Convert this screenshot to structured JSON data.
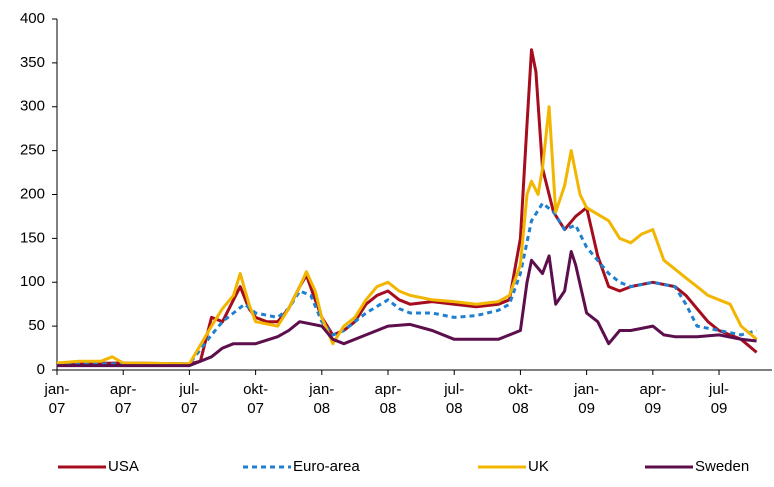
{
  "chart_data": {
    "type": "line",
    "xlim": [
      0,
      32.4
    ],
    "ylim": [
      0,
      400
    ],
    "yticks": [
      0,
      50,
      100,
      150,
      200,
      250,
      300,
      350,
      400
    ],
    "xticks": [
      {
        "value": 0,
        "label": "jan-07"
      },
      {
        "value": 3,
        "label": "apr-07"
      },
      {
        "value": 6,
        "label": "jul-07"
      },
      {
        "value": 9,
        "label": "okt-07"
      },
      {
        "value": 12,
        "label": "jan-08"
      },
      {
        "value": 15,
        "label": "apr-08"
      },
      {
        "value": 18,
        "label": "jul-08"
      },
      {
        "value": 21,
        "label": "okt-08"
      },
      {
        "value": 24,
        "label": "jan-09"
      },
      {
        "value": 27,
        "label": "apr-09"
      },
      {
        "value": 30,
        "label": "jul-09"
      }
    ],
    "series": [
      {
        "name": "USA",
        "color": "#a50d1e",
        "dashed": false,
        "x": [
          0,
          3,
          6,
          6.5,
          7,
          7.5,
          8,
          8.3,
          8.7,
          9,
          9.5,
          10,
          10.5,
          11,
          11.3,
          11.7,
          12,
          12.5,
          13,
          13.5,
          14,
          14.5,
          15,
          15.5,
          16,
          17,
          18,
          19,
          20,
          20.5,
          21,
          21.3,
          21.5,
          21.7,
          22,
          22.5,
          23,
          23.5,
          24,
          24.5,
          25,
          25.5,
          26,
          27,
          28,
          28.5,
          29,
          29.5,
          30,
          31,
          31.7
        ],
        "values": [
          7,
          8,
          7,
          10,
          60,
          55,
          80,
          95,
          70,
          60,
          55,
          55,
          70,
          95,
          108,
          80,
          60,
          40,
          45,
          55,
          75,
          85,
          90,
          80,
          75,
          78,
          75,
          72,
          75,
          80,
          150,
          280,
          365,
          340,
          230,
          180,
          160,
          175,
          185,
          130,
          95,
          90,
          95,
          100,
          95,
          85,
          70,
          55,
          45,
          35,
          20
        ]
      },
      {
        "name": "Euro-area",
        "color": "#1f7fd0",
        "dashed": true,
        "x": [
          0,
          6,
          7,
          7.5,
          8,
          8.5,
          9,
          10,
          10.5,
          11,
          11.5,
          12,
          12.5,
          13,
          14,
          15,
          15.5,
          16,
          17,
          18,
          19,
          20,
          20.5,
          21,
          21.5,
          22,
          22.5,
          23,
          23.5,
          24,
          25,
          25.5,
          26,
          27,
          28,
          28.5,
          29,
          30,
          31,
          31.7
        ],
        "values": [
          7,
          7,
          40,
          55,
          65,
          75,
          65,
          60,
          70,
          90,
          85,
          55,
          40,
          45,
          65,
          80,
          70,
          65,
          65,
          60,
          62,
          68,
          75,
          110,
          170,
          190,
          180,
          160,
          165,
          140,
          110,
          100,
          95,
          100,
          95,
          75,
          50,
          45,
          40,
          45
        ]
      },
      {
        "name": "UK",
        "color": "#f2b600",
        "dashed": false,
        "x": [
          0,
          1,
          2,
          2.5,
          3,
          6,
          7,
          7.5,
          8,
          8.3,
          8.7,
          9,
          10,
          10.5,
          11,
          11.3,
          11.7,
          12,
          12.5,
          13,
          13.5,
          14,
          14.5,
          15,
          15.5,
          16,
          17,
          18,
          19,
          20,
          20.5,
          21,
          21.3,
          21.5,
          21.8,
          22,
          22.3,
          22.6,
          23,
          23.3,
          23.7,
          24,
          25,
          25.5,
          26,
          26.5,
          27,
          27.5,
          28,
          28.5,
          29,
          29.5,
          30,
          30.5,
          31,
          31.7
        ],
        "values": [
          8,
          10,
          10,
          15,
          8,
          7,
          50,
          70,
          85,
          110,
          75,
          55,
          50,
          70,
          95,
          112,
          90,
          60,
          30,
          50,
          60,
          80,
          95,
          100,
          90,
          85,
          80,
          78,
          75,
          78,
          85,
          120,
          200,
          215,
          200,
          230,
          300,
          180,
          210,
          250,
          200,
          185,
          170,
          150,
          145,
          155,
          160,
          125,
          115,
          105,
          95,
          85,
          80,
          75,
          50,
          35
        ]
      },
      {
        "name": "Sweden",
        "color": "#5c0f4c",
        "dashed": false,
        "x": [
          0,
          6,
          7,
          7.5,
          8,
          9,
          10,
          10.5,
          11,
          12,
          12.5,
          13,
          14,
          15,
          16,
          17,
          18,
          19,
          20,
          21,
          21.3,
          21.5,
          22,
          22.3,
          22.6,
          23,
          23.3,
          23.5,
          24,
          24.5,
          25,
          25.5,
          26,
          27,
          27.5,
          28,
          29,
          30,
          31,
          31.7
        ],
        "values": [
          5,
          5,
          15,
          25,
          30,
          30,
          38,
          45,
          55,
          50,
          35,
          30,
          40,
          50,
          52,
          45,
          35,
          35,
          35,
          45,
          100,
          125,
          110,
          130,
          75,
          90,
          135,
          120,
          65,
          55,
          30,
          45,
          45,
          50,
          40,
          38,
          38,
          40,
          35,
          33
        ]
      }
    ]
  }
}
